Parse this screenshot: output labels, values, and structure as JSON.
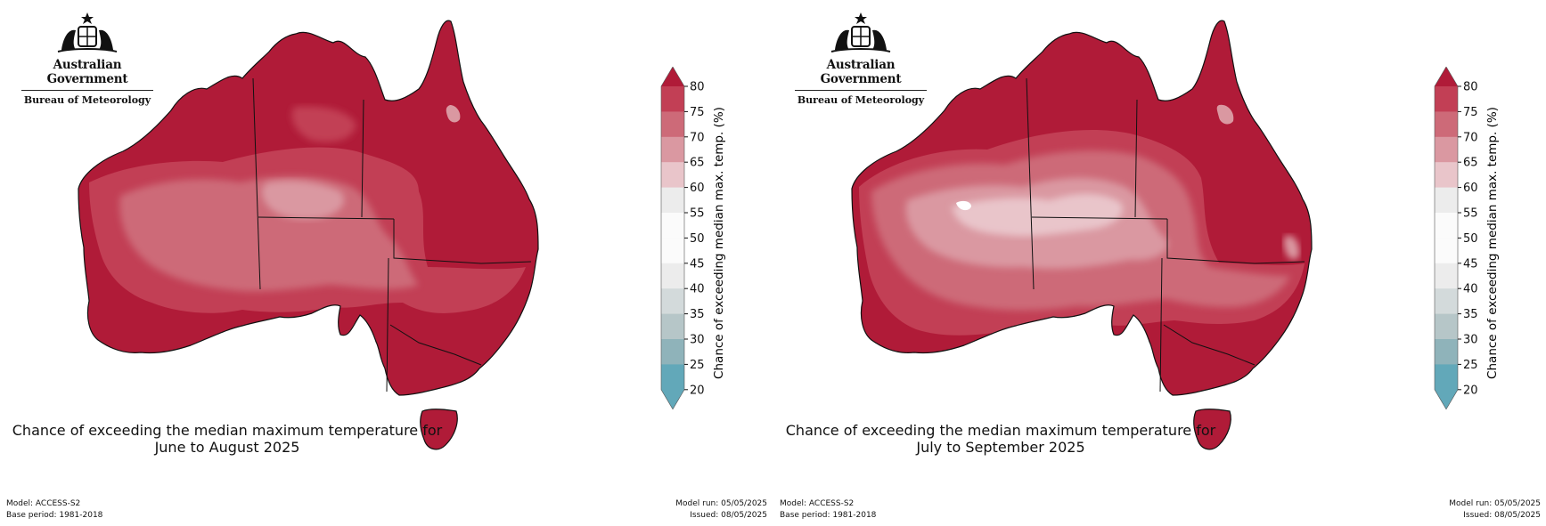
{
  "logo": {
    "government": "Australian Government",
    "bureau": "Bureau of Meteorology"
  },
  "colorbar": {
    "label": "Chance of exceeding median max. temp. (%)",
    "ticks": [
      "80",
      "75",
      "70",
      "65",
      "60",
      "55",
      "50",
      "45",
      "40",
      "35",
      "30",
      "25",
      "20"
    ],
    "band_colors": [
      "#b01b38",
      "#c23f55",
      "#cd6a78",
      "#da98a1",
      "#e9c5ca",
      "#ececec",
      "#fbfbfb",
      "#fbfbfb",
      "#ececec",
      "#d3dadb",
      "#b6c6c8",
      "#8fb3ba",
      "#62a8b9"
    ]
  },
  "panels": [
    {
      "title_line1": "Chance of exceeding the median maximum temperature for",
      "title_line2": "June to August 2025",
      "model": "Model: ACCESS-S2",
      "base_period": "Base period: 1981-2018",
      "model_run": "Model run: 05/05/2025",
      "issued": "Issued: 08/05/2025"
    },
    {
      "title_line1": "Chance of exceeding the median maximum temperature for",
      "title_line2": "July to September 2025",
      "model": "Model: ACCESS-S2",
      "base_period": "Base period: 1981-2018",
      "model_run": "Model run: 05/05/2025",
      "issued": "Issued: 08/05/2025"
    }
  ]
}
